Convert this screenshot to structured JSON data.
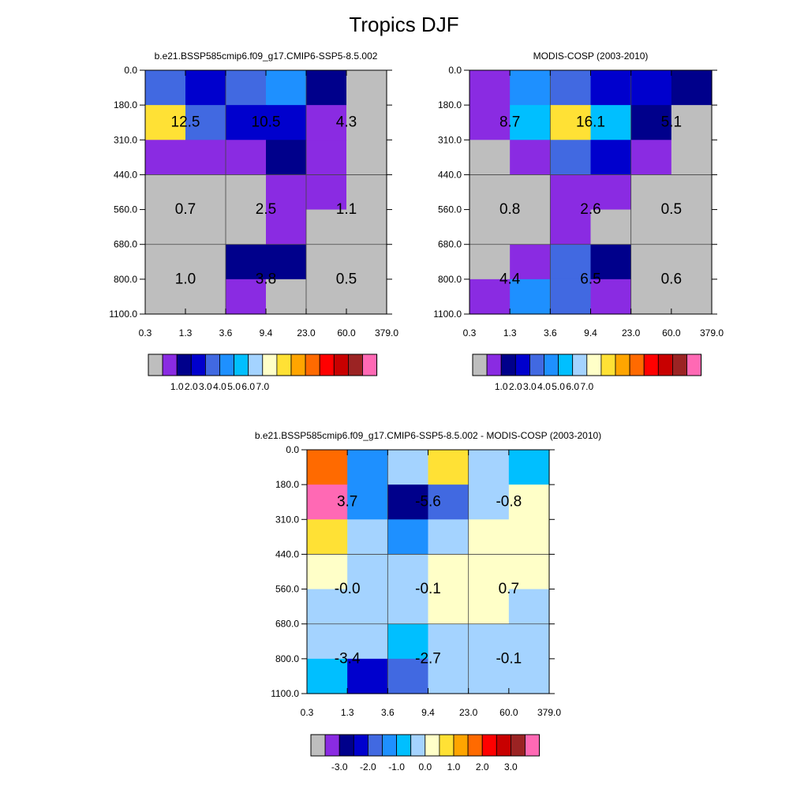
{
  "page": {
    "title": "Tropics DJF"
  },
  "palette": {
    "main": [
      "#bebebe",
      "#8a2be2",
      "#00008b",
      "#0000cd",
      "#4169e1",
      "#1e90ff",
      "#00bfff",
      "#a4d3ff",
      "#ffffc8",
      "#ffe135",
      "#ffa500",
      "#ff6a00",
      "#ff0000",
      "#c80000",
      "#9b2323",
      "#ff69b4"
    ],
    "diff": [
      "#bebebe",
      "#8a2be2",
      "#00008b",
      "#0000cd",
      "#4169e1",
      "#1e90ff",
      "#00bfff",
      "#a4d3ff",
      "#ffffc8",
      "#ffe135",
      "#ffa500",
      "#ff6a00",
      "#ff0000",
      "#c80000",
      "#9b2323",
      "#ff69b4"
    ]
  },
  "chart_data": [
    {
      "id": "model",
      "type": "heatmap",
      "title": "b.e21.BSSP585cmip6.f09_g17.CMIP6-SSP5-8.5.002",
      "x_ticks": [
        "0.3",
        "1.3",
        "3.6",
        "9.4",
        "23.0",
        "60.0",
        "379.0"
      ],
      "y_ticks": [
        "0.0",
        "180.0",
        "310.0",
        "440.0",
        "560.0",
        "680.0",
        "800.0",
        "1100.0"
      ],
      "cell_colors": [
        [
          "#4169e1",
          "#0000cd",
          "#4169e1",
          "#1e90ff",
          "#00008b",
          "#bebebe"
        ],
        [
          "#ffe135",
          "#4169e1",
          "#0000cd",
          "#0000cd",
          "#8a2be2",
          "#bebebe"
        ],
        [
          "#8a2be2",
          "#8a2be2",
          "#8a2be2",
          "#00008b",
          "#8a2be2",
          "#bebebe"
        ],
        [
          "#bebebe",
          "#bebebe",
          "#bebebe",
          "#8a2be2",
          "#8a2be2",
          "#bebebe"
        ],
        [
          "#bebebe",
          "#bebebe",
          "#bebebe",
          "#8a2be2",
          "#bebebe",
          "#bebebe"
        ],
        [
          "#bebebe",
          "#bebebe",
          "#00008b",
          "#00008b",
          "#bebebe",
          "#bebebe"
        ],
        [
          "#bebebe",
          "#bebebe",
          "#8a2be2",
          "#bebebe",
          "#bebebe",
          "#bebebe"
        ]
      ],
      "annotations": [
        {
          "label": "12.5",
          "col": 0,
          "row": 0
        },
        {
          "label": "10.5",
          "col": 1,
          "row": 0
        },
        {
          "label": "4.3",
          "col": 2,
          "row": 0
        },
        {
          "label": "0.7",
          "col": 0,
          "row": 1
        },
        {
          "label": "2.5",
          "col": 1,
          "row": 1
        },
        {
          "label": "1.1",
          "col": 2,
          "row": 1
        },
        {
          "label": "1.0",
          "col": 0,
          "row": 2
        },
        {
          "label": "3.8",
          "col": 1,
          "row": 2
        },
        {
          "label": "0.5",
          "col": 2,
          "row": 2
        }
      ],
      "colorbar": {
        "palette": "main",
        "tick_labels": [
          "1.0",
          "2.0",
          "3.0",
          "4.0",
          "5.0",
          "6.0",
          "7.0"
        ],
        "tick_boxes": [
          2,
          3,
          4,
          5,
          6,
          7,
          8
        ]
      }
    },
    {
      "id": "obs",
      "type": "heatmap",
      "title": "MODIS-COSP (2003-2010)",
      "x_ticks": [
        "0.3",
        "1.3",
        "3.6",
        "9.4",
        "23.0",
        "60.0",
        "379.0"
      ],
      "y_ticks": [
        "0.0",
        "180.0",
        "310.0",
        "440.0",
        "560.0",
        "680.0",
        "800.0",
        "1100.0"
      ],
      "cell_colors": [
        [
          "#8a2be2",
          "#1e90ff",
          "#4169e1",
          "#0000cd",
          "#0000cd",
          "#00008b"
        ],
        [
          "#8a2be2",
          "#00bfff",
          "#ffe135",
          "#00bfff",
          "#00008b",
          "#bebebe"
        ],
        [
          "#bebebe",
          "#8a2be2",
          "#4169e1",
          "#0000cd",
          "#8a2be2",
          "#bebebe"
        ],
        [
          "#bebebe",
          "#bebebe",
          "#8a2be2",
          "#8a2be2",
          "#bebebe",
          "#bebebe"
        ],
        [
          "#bebebe",
          "#bebebe",
          "#8a2be2",
          "#bebebe",
          "#bebebe",
          "#bebebe"
        ],
        [
          "#bebebe",
          "#8a2be2",
          "#4169e1",
          "#00008b",
          "#bebebe",
          "#bebebe"
        ],
        [
          "#8a2be2",
          "#1e90ff",
          "#4169e1",
          "#8a2be2",
          "#bebebe",
          "#bebebe"
        ]
      ],
      "annotations": [
        {
          "label": "8.7",
          "col": 0,
          "row": 0
        },
        {
          "label": "16.1",
          "col": 1,
          "row": 0
        },
        {
          "label": "5.1",
          "col": 2,
          "row": 0
        },
        {
          "label": "0.8",
          "col": 0,
          "row": 1
        },
        {
          "label": "2.6",
          "col": 1,
          "row": 1
        },
        {
          "label": "0.5",
          "col": 2,
          "row": 1
        },
        {
          "label": "4.4",
          "col": 0,
          "row": 2
        },
        {
          "label": "6.5",
          "col": 1,
          "row": 2
        },
        {
          "label": "0.6",
          "col": 2,
          "row": 2
        }
      ],
      "colorbar": {
        "palette": "main",
        "tick_labels": [
          "1.0",
          "2.0",
          "3.0",
          "4.0",
          "5.0",
          "6.0",
          "7.0"
        ],
        "tick_boxes": [
          2,
          3,
          4,
          5,
          6,
          7,
          8
        ]
      }
    },
    {
      "id": "diff",
      "type": "heatmap",
      "title": "b.e21.BSSP585cmip6.f09_g17.CMIP6-SSP5-8.5.002 - MODIS-COSP (2003-2010)",
      "x_ticks": [
        "0.3",
        "1.3",
        "3.6",
        "9.4",
        "23.0",
        "60.0",
        "379.0"
      ],
      "y_ticks": [
        "0.0",
        "180.0",
        "310.0",
        "440.0",
        "560.0",
        "680.0",
        "800.0",
        "1100.0"
      ],
      "cell_colors": [
        [
          "#ff6a00",
          "#1e90ff",
          "#a4d3ff",
          "#ffe135",
          "#a4d3ff",
          "#00bfff"
        ],
        [
          "#ff69b4",
          "#1e90ff",
          "#00008b",
          "#4169e1",
          "#a4d3ff",
          "#ffffc8"
        ],
        [
          "#ffe135",
          "#a4d3ff",
          "#1e90ff",
          "#a4d3ff",
          "#ffffc8",
          "#ffffc8"
        ],
        [
          "#ffffc8",
          "#a4d3ff",
          "#a4d3ff",
          "#ffffc8",
          "#ffffc8",
          "#ffffc8"
        ],
        [
          "#a4d3ff",
          "#a4d3ff",
          "#a4d3ff",
          "#ffffc8",
          "#ffffc8",
          "#a4d3ff"
        ],
        [
          "#a4d3ff",
          "#a4d3ff",
          "#00bfff",
          "#a4d3ff",
          "#a4d3ff",
          "#a4d3ff"
        ],
        [
          "#00bfff",
          "#0000cd",
          "#4169e1",
          "#a4d3ff",
          "#a4d3ff",
          "#a4d3ff"
        ]
      ],
      "annotations": [
        {
          "label": "3.7",
          "col": 0,
          "row": 0
        },
        {
          "label": "-5.6",
          "col": 1,
          "row": 0
        },
        {
          "label": "-0.8",
          "col": 2,
          "row": 0
        },
        {
          "label": "-0.0",
          "col": 0,
          "row": 1
        },
        {
          "label": "-0.1",
          "col": 1,
          "row": 1
        },
        {
          "label": "0.7",
          "col": 2,
          "row": 1
        },
        {
          "label": "-3.4",
          "col": 0,
          "row": 2
        },
        {
          "label": "-2.7",
          "col": 1,
          "row": 2
        },
        {
          "label": "-0.1",
          "col": 2,
          "row": 2
        }
      ],
      "colorbar": {
        "palette": "diff",
        "tick_labels": [
          "-3.0",
          "-2.0",
          "-1.0",
          "0.0",
          "1.0",
          "2.0",
          "3.0"
        ],
        "tick_boxes": [
          2,
          4,
          6,
          8,
          10,
          12,
          14
        ]
      }
    }
  ]
}
